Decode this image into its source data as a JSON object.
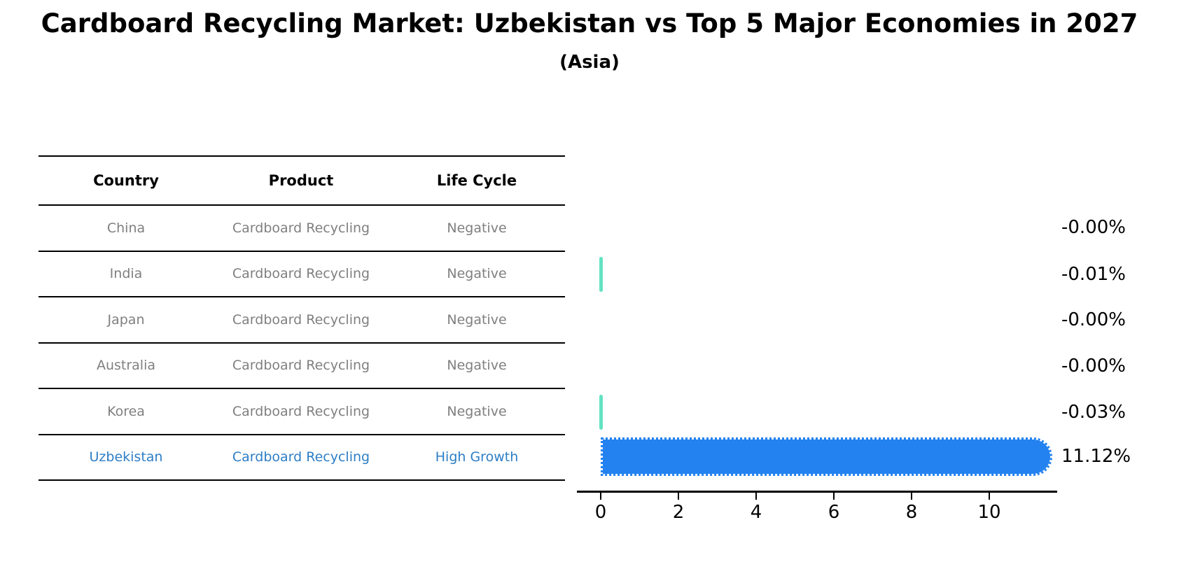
{
  "header": {
    "title": "Cardboard Recycling Market: Uzbekistan vs Top 5 Major Economies in 2027",
    "subtitle": "(Asia)"
  },
  "table": {
    "columns": [
      "Country",
      "Product",
      "Life Cycle"
    ],
    "rows": [
      {
        "country": "China",
        "product": "Cardboard Recycling",
        "life_cycle": "Negative",
        "highlight": false
      },
      {
        "country": "India",
        "product": "Cardboard Recycling",
        "life_cycle": "Negative",
        "highlight": false
      },
      {
        "country": "Japan",
        "product": "Cardboard Recycling",
        "life_cycle": "Negative",
        "highlight": false
      },
      {
        "country": "Australia",
        "product": "Cardboard Recycling",
        "life_cycle": "Negative",
        "highlight": false
      },
      {
        "country": "Korea",
        "product": "Cardboard Recycling",
        "life_cycle": "Negative",
        "highlight": false
      },
      {
        "country": "Uzbekistan",
        "product": "Cardboard Recycling",
        "life_cycle": "High Growth",
        "highlight": true
      }
    ]
  },
  "chart_data": {
    "type": "bar",
    "orientation": "horizontal",
    "title": "Cardboard Recycling Market: Uzbekistan vs Top 5 Major Economies in 2027",
    "subtitle": "(Asia)",
    "categories": [
      "China",
      "India",
      "Japan",
      "Australia",
      "Korea",
      "Uzbekistan"
    ],
    "values": [
      -0.0,
      -0.01,
      -0.0,
      -0.0,
      -0.03,
      11.12
    ],
    "value_labels": [
      "-0.00%",
      "-0.01%",
      "-0.00%",
      "-0.00%",
      "-0.03%",
      "11.12%"
    ],
    "bar_style": [
      "none",
      "tick",
      "none",
      "none",
      "tick",
      "bar"
    ],
    "xticks": [
      "0",
      "2",
      "4",
      "6",
      "8",
      "10"
    ],
    "xtick_values": [
      0,
      2,
      4,
      6,
      8,
      10
    ],
    "xlim": [
      -0.6,
      11.8
    ],
    "grid": false,
    "legend": "none",
    "colors": {
      "main_bar": "#2382f0",
      "negative_tick": "#63e2c3",
      "highlight_text": "#2d7ec6",
      "muted_text": "#7f7f7f",
      "axis": "#000000"
    }
  }
}
